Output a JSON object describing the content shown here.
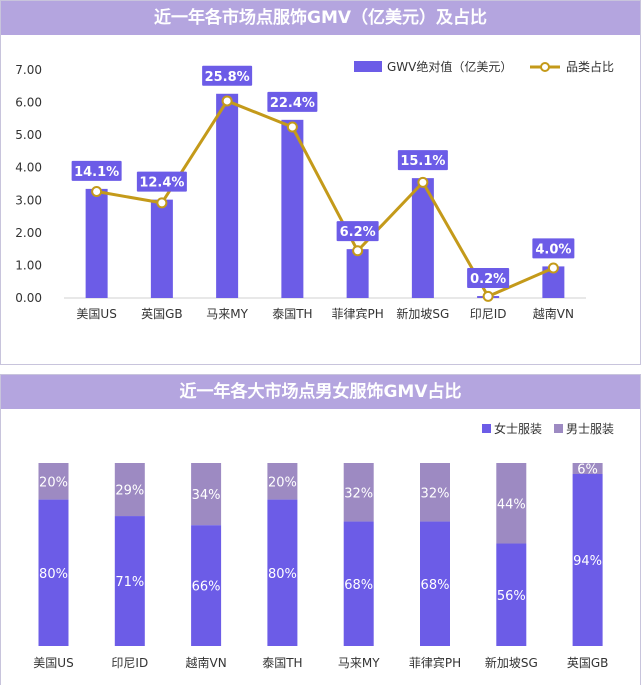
{
  "chart_data": [
    {
      "type": "bar",
      "title": "近一年各市场点服饰GMV（亿美元）及占比",
      "categories": [
        "美国US",
        "英国GB",
        "马来MY",
        "泰国TH",
        "菲律宾PH",
        "新加坡SG",
        "印尼ID",
        "越南VN"
      ],
      "series": [
        {
          "name": "GWV绝对值（亿美元）",
          "kind": "bar",
          "values": [
            3.35,
            3.02,
            6.27,
            5.47,
            1.5,
            3.68,
            0.06,
            0.97
          ]
        },
        {
          "name": "品类占比",
          "kind": "line",
          "values": [
            3.27,
            2.92,
            6.05,
            5.25,
            1.45,
            3.55,
            0.05,
            0.92
          ],
          "labels": [
            "14.1%",
            "12.4%",
            "25.8%",
            "22.4%",
            "6.2%",
            "15.1%",
            "0.2%",
            "4.0%"
          ]
        }
      ],
      "yticks": [
        "0.00",
        "1.00",
        "2.00",
        "3.00",
        "4.00",
        "5.00",
        "6.00",
        "7.00"
      ],
      "ylim": [
        0,
        7
      ],
      "legend": "top-right",
      "colors": {
        "bar": "#6c5ce7",
        "line": "#c49a1a",
        "label_bg": "#6c5ce7"
      }
    },
    {
      "type": "bar",
      "stacked": true,
      "title": "近一年各大市场点男女服饰GMV占比",
      "categories": [
        "美国US",
        "印尼ID",
        "越南VN",
        "泰国TH",
        "马来MY",
        "菲律宾PH",
        "新加坡SG",
        "英国GB"
      ],
      "series": [
        {
          "name": "女士服装",
          "values": [
            80,
            71,
            66,
            80,
            68,
            68,
            56,
            94
          ],
          "labels": [
            "80%",
            "71%",
            "66%",
            "80%",
            "68%",
            "68%",
            "56%",
            "94%"
          ]
        },
        {
          "name": "男士服装",
          "values": [
            20,
            29,
            34,
            20,
            32,
            32,
            44,
            6
          ],
          "labels": [
            "20%",
            "29%",
            "34%",
            "20%",
            "32%",
            "32%",
            "44%",
            "6%"
          ]
        }
      ],
      "ylim": [
        0,
        100
      ],
      "legend": "top-right",
      "colors": {
        "female": "#6c5ce7",
        "male": "#9d8ac2"
      }
    }
  ]
}
